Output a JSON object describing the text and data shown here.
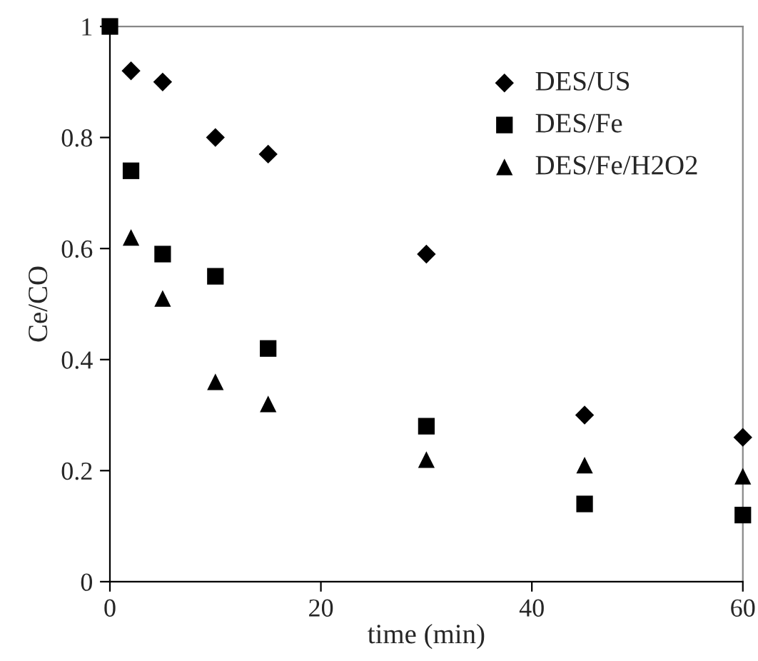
{
  "chart_data": {
    "type": "scatter",
    "xlabel": "time (min)",
    "ylabel": "Ce/CO",
    "xlim": [
      0,
      60
    ],
    "xticks": [
      0,
      20,
      40,
      60
    ],
    "ylim": [
      0,
      1
    ],
    "yticks": [
      0,
      0.2,
      0.4,
      0.6,
      0.8,
      1
    ],
    "grid": false,
    "legend": "top right",
    "series": [
      {
        "name": "DES/US",
        "color": "#000000",
        "marker": "diamond",
        "x": [
          2,
          5,
          10,
          15,
          30,
          45,
          60
        ],
        "values": [
          0.92,
          0.9,
          0.8,
          0.77,
          0.59,
          0.3,
          0.26
        ]
      },
      {
        "name": "DES/Fe",
        "color": "#000000",
        "marker": "square",
        "x": [
          0,
          2,
          5,
          10,
          15,
          30,
          45,
          60
        ],
        "values": [
          1.0,
          0.74,
          0.59,
          0.55,
          0.42,
          0.28,
          0.14,
          0.12
        ]
      },
      {
        "name": "DES/Fe/H2O2",
        "color": "#000000",
        "marker": "triangle",
        "x": [
          2,
          5,
          10,
          15,
          30,
          45,
          60
        ],
        "values": [
          0.62,
          0.51,
          0.36,
          0.32,
          0.22,
          0.21,
          0.19
        ]
      }
    ]
  }
}
